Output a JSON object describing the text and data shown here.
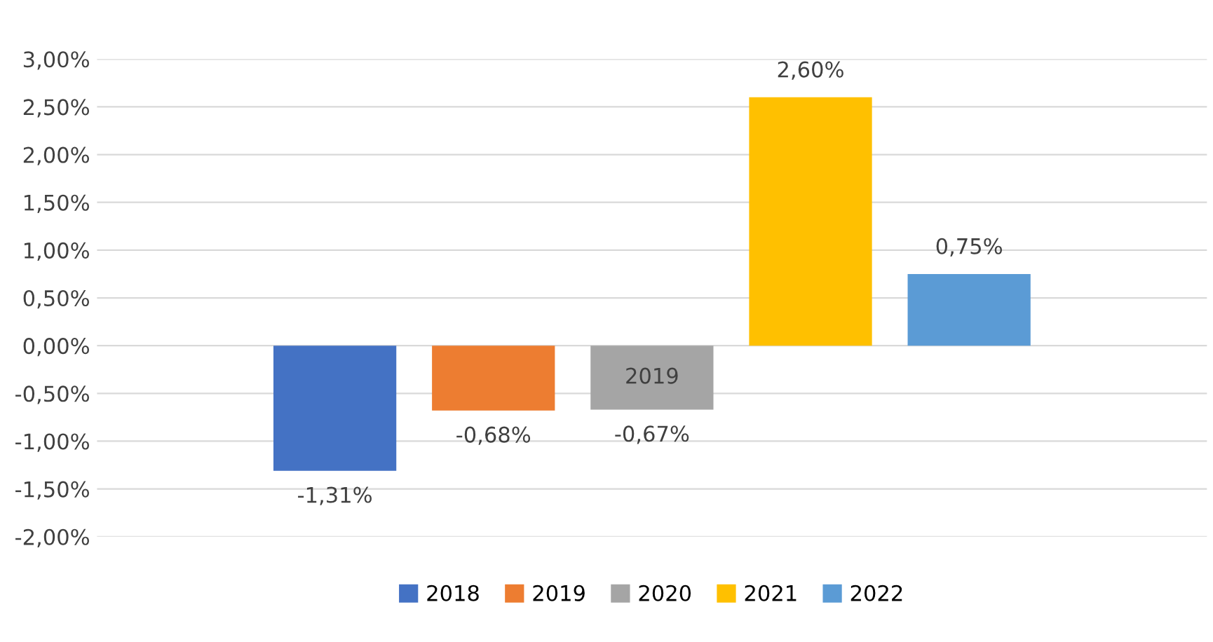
{
  "chart_data": {
    "type": "bar",
    "categories": [
      null
    ],
    "series": [
      {
        "name": "2018",
        "color": "#4472c4",
        "values": [
          -1.31
        ],
        "value_labels": [
          "-1,31%"
        ]
      },
      {
        "name": "2019",
        "color": "#ed7d31",
        "values": [
          -0.68
        ],
        "value_labels": [
          "-0,68%"
        ]
      },
      {
        "name": "2020",
        "color": "#a5a5a5",
        "values": [
          -0.67
        ],
        "value_labels": [
          "-0,67%"
        ]
      },
      {
        "name": "2021",
        "color": "#ffc000",
        "values": [
          2.6
        ],
        "value_labels": [
          "2,60%"
        ]
      },
      {
        "name": "2022",
        "color": "#5b9bd5",
        "values": [
          0.75
        ],
        "value_labels": [
          "0,75%"
        ]
      }
    ],
    "ylim": [
      -2,
      3
    ],
    "yticks": [
      {
        "value": -2,
        "label": "-2,00%"
      },
      {
        "value": -1.5,
        "label": "-1,50%"
      },
      {
        "value": -1,
        "label": "-1,00%"
      },
      {
        "value": -0.5,
        "label": "-0,50%"
      },
      {
        "value": 0,
        "label": "0,00%"
      },
      {
        "value": 0.5,
        "label": "0,50%"
      },
      {
        "value": 1,
        "label": "1,00%"
      },
      {
        "value": 1.5,
        "label": "1,50%"
      },
      {
        "value": 2,
        "label": "2,00%"
      },
      {
        "value": 2.5,
        "label": "2,50%"
      },
      {
        "value": 3,
        "label": "3,00%"
      }
    ],
    "annotations": [
      "2019"
    ],
    "grid": "y",
    "legend": "bottom"
  }
}
